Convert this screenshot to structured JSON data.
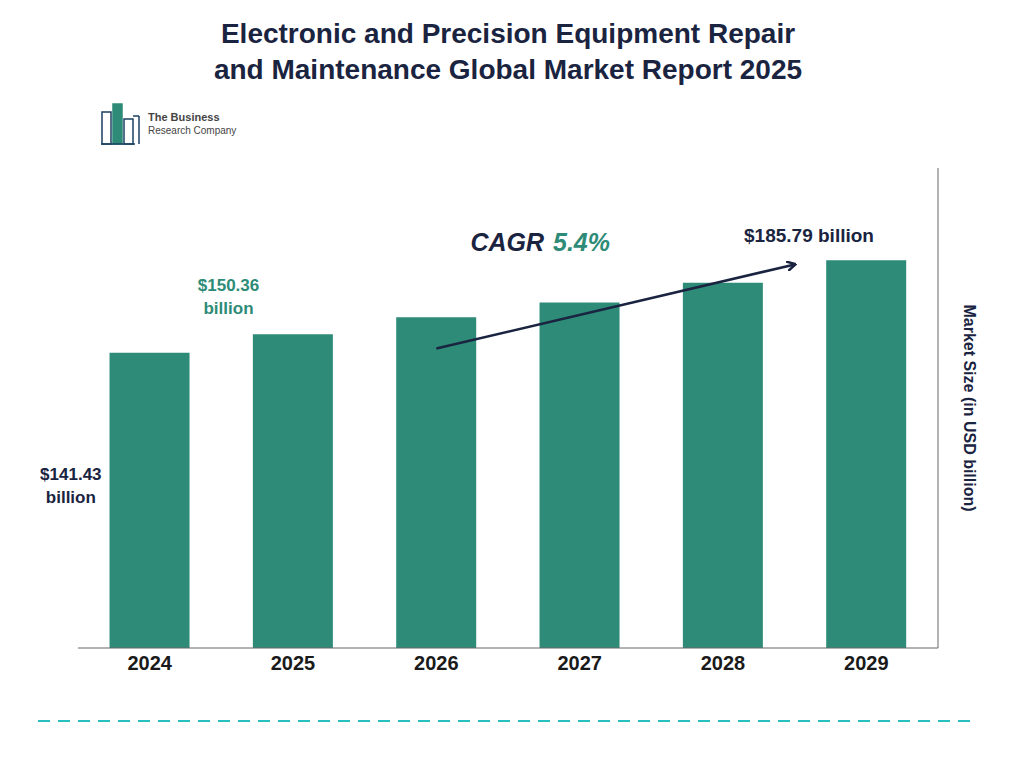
{
  "chart_data": {
    "type": "bar",
    "title": "Electronic and Precision Equipment Repair\nand Maintenance Global Market Report 2025",
    "categories": [
      "2024",
      "2025",
      "2026",
      "2027",
      "2028",
      "2029"
    ],
    "values": [
      141.43,
      150.36,
      158.5,
      165.5,
      175.0,
      185.79
    ],
    "color": "#2d8b78",
    "ylabel": "Market Size (in USD billion)",
    "ylim": [
      0,
      230
    ],
    "grid": false,
    "tick_labels": "x",
    "annotations": [
      {
        "text": "$141.43\nbillion",
        "color": "#1a2440",
        "category": "2024"
      },
      {
        "text": "$150.36\nbillion",
        "color": "#2d8b78",
        "category": "2025"
      },
      {
        "text": "$185.79 billion",
        "color": "#1a2440",
        "category": "2029"
      },
      {
        "text": "CAGR ",
        "color": "#1a2440"
      },
      {
        "text": "5.4%",
        "color": "#2d8b78"
      },
      {
        "text": "The Business",
        "color": "#444444"
      },
      {
        "text": "Research Company",
        "color": "#444444"
      }
    ]
  }
}
